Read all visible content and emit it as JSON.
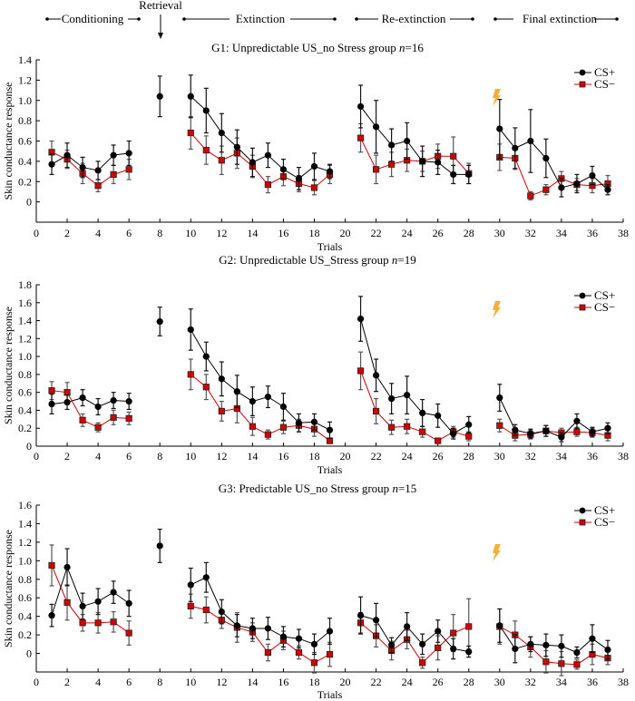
{
  "phases": [
    {
      "label": "Conditioning"
    },
    {
      "label": "Retrieval"
    },
    {
      "label": "Extinction"
    },
    {
      "label": "Re-extinction"
    },
    {
      "label": "Final extinction"
    }
  ],
  "legend": {
    "cs_plus": "CS+",
    "cs_minus": "CS−"
  },
  "colors": {
    "cs_plus": "#000000",
    "cs_minus": "#d40000",
    "error_bar": "#000000",
    "lightning": "#f5a623"
  },
  "icons": {
    "shock": "lightning-bolt-icon",
    "retrieval": "down-arrow-icon"
  },
  "chart_data": [
    {
      "type": "line",
      "title_prefix": "G1: Unpredictable US_no Stress group ",
      "title_n": "n",
      "title_suffix": "=16",
      "xlabel": "Trials",
      "ylabel": "Skin conductance response",
      "xlim": [
        0,
        38
      ],
      "ylim": [
        -0.2,
        1.4
      ],
      "xticks": [
        0,
        2,
        4,
        6,
        8,
        10,
        12,
        14,
        16,
        18,
        20,
        22,
        24,
        26,
        28,
        30,
        32,
        34,
        36,
        38
      ],
      "yticks": [
        0,
        0.2,
        0.4,
        0.6,
        0.8,
        1.0,
        1.2,
        1.4
      ],
      "ytick_labels": [
        "0",
        "0.2",
        "0.4",
        "0.6",
        "0.8",
        "1.0",
        "1.2",
        "1.4"
      ],
      "legend_position": "top-right",
      "segments": [
        [
          1,
          6
        ],
        [
          8,
          8
        ],
        [
          10,
          19
        ],
        [
          21,
          28
        ],
        [
          30,
          37
        ]
      ],
      "series": [
        {
          "name": "CS+",
          "x": [
            1,
            2,
            3,
            4,
            5,
            6,
            8,
            10,
            11,
            12,
            13,
            14,
            15,
            16,
            17,
            18,
            19,
            21,
            22,
            23,
            24,
            25,
            26,
            27,
            28,
            30,
            31,
            32,
            33,
            34,
            35,
            36,
            37
          ],
          "y": [
            0.37,
            0.46,
            0.34,
            0.31,
            0.46,
            0.48,
            1.04,
            1.04,
            0.9,
            0.68,
            0.54,
            0.39,
            0.46,
            0.32,
            0.23,
            0.35,
            0.3,
            0.94,
            0.74,
            0.56,
            0.6,
            0.4,
            0.39,
            0.27,
            0.27,
            0.72,
            0.53,
            0.6,
            0.43,
            0.14,
            0.18,
            0.26,
            0.12
          ],
          "err": [
            0.1,
            0.12,
            0.1,
            0.09,
            0.1,
            0.12,
            0.2,
            0.21,
            0.22,
            0.19,
            0.17,
            0.14,
            0.12,
            0.1,
            0.11,
            0.13,
            0.07,
            0.21,
            0.26,
            0.16,
            0.18,
            0.15,
            0.12,
            0.09,
            0.09,
            0.29,
            0.2,
            0.31,
            0.19,
            0.09,
            0.09,
            0.09,
            0.05
          ]
        },
        {
          "name": "CS−",
          "x": [
            1,
            2,
            3,
            4,
            5,
            6,
            10,
            11,
            12,
            13,
            14,
            15,
            16,
            17,
            18,
            19,
            21,
            22,
            23,
            24,
            25,
            26,
            27,
            28,
            30,
            31,
            32,
            33,
            34,
            35,
            36,
            37
          ],
          "y": [
            0.49,
            0.42,
            0.28,
            0.16,
            0.27,
            0.32,
            0.68,
            0.51,
            0.41,
            0.48,
            0.35,
            0.17,
            0.25,
            0.18,
            0.14,
            0.27,
            0.63,
            0.32,
            0.37,
            0.41,
            0.4,
            0.45,
            0.45,
            0.28,
            0.44,
            0.43,
            0.06,
            0.12,
            0.23,
            0.17,
            0.16,
            0.18
          ],
          "err": [
            0.11,
            0.09,
            0.1,
            0.06,
            0.09,
            0.1,
            0.16,
            0.14,
            0.14,
            0.15,
            0.11,
            0.08,
            0.09,
            0.08,
            0.07,
            0.09,
            0.14,
            0.14,
            0.12,
            0.11,
            0.1,
            0.12,
            0.19,
            0.1,
            0.13,
            0.11,
            0.04,
            0.05,
            0.07,
            0.06,
            0.07,
            0.08
          ]
        }
      ]
    },
    {
      "type": "line",
      "title_prefix": "G2: Unpredictable US_Stress group ",
      "title_n": "n",
      "title_suffix": "=19",
      "xlabel": "Trials",
      "ylabel": "Skin conductance response",
      "xlim": [
        0,
        38
      ],
      "ylim": [
        0,
        1.8
      ],
      "xticks": [
        0,
        2,
        4,
        6,
        8,
        10,
        12,
        14,
        16,
        18,
        20,
        22,
        24,
        26,
        28,
        30,
        32,
        34,
        36,
        38
      ],
      "yticks": [
        0,
        0.2,
        0.4,
        0.6,
        0.8,
        1.0,
        1.2,
        1.4,
        1.6,
        1.8
      ],
      "ytick_labels": [
        "0",
        "0.2",
        "0.4",
        "0.6",
        "0.8",
        "1.0",
        "1.2",
        "1.4",
        "1.6",
        "1.8"
      ],
      "legend_position": "top-right",
      "segments": [
        [
          1,
          6
        ],
        [
          8,
          8
        ],
        [
          10,
          19
        ],
        [
          21,
          28
        ],
        [
          30,
          37
        ]
      ],
      "series": [
        {
          "name": "CS+",
          "x": [
            1,
            2,
            3,
            4,
            5,
            6,
            8,
            10,
            11,
            12,
            13,
            14,
            15,
            16,
            17,
            18,
            19,
            21,
            22,
            23,
            24,
            25,
            26,
            27,
            28,
            30,
            31,
            32,
            33,
            34,
            35,
            36,
            37
          ],
          "y": [
            0.47,
            0.49,
            0.54,
            0.44,
            0.51,
            0.5,
            1.39,
            1.3,
            1.0,
            0.75,
            0.61,
            0.5,
            0.55,
            0.44,
            0.26,
            0.27,
            0.18,
            1.42,
            0.79,
            0.53,
            0.57,
            0.37,
            0.34,
            0.14,
            0.24,
            0.54,
            0.18,
            0.14,
            0.17,
            0.1,
            0.28,
            0.16,
            0.2
          ],
          "err": [
            0.11,
            0.08,
            0.09,
            0.09,
            0.09,
            0.09,
            0.16,
            0.23,
            0.16,
            0.19,
            0.18,
            0.16,
            0.12,
            0.15,
            0.1,
            0.09,
            0.09,
            0.25,
            0.18,
            0.17,
            0.21,
            0.15,
            0.13,
            0.06,
            0.09,
            0.15,
            0.06,
            0.05,
            0.06,
            0.05,
            0.08,
            0.05,
            0.06
          ]
        },
        {
          "name": "CS−",
          "x": [
            1,
            2,
            3,
            4,
            5,
            6,
            10,
            11,
            12,
            13,
            14,
            15,
            16,
            17,
            18,
            19,
            21,
            22,
            23,
            24,
            25,
            26,
            27,
            28,
            30,
            31,
            32,
            33,
            34,
            35,
            36,
            37
          ],
          "y": [
            0.62,
            0.6,
            0.29,
            0.21,
            0.32,
            0.31,
            0.8,
            0.66,
            0.39,
            0.42,
            0.22,
            0.13,
            0.21,
            0.23,
            0.19,
            0.06,
            0.84,
            0.39,
            0.21,
            0.22,
            0.16,
            0.06,
            0.16,
            0.11,
            0.23,
            0.12,
            0.13,
            0.17,
            0.15,
            0.16,
            0.15,
            0.12
          ],
          "err": [
            0.1,
            0.11,
            0.07,
            0.05,
            0.08,
            0.07,
            0.17,
            0.14,
            0.11,
            0.16,
            0.1,
            0.05,
            0.07,
            0.07,
            0.08,
            0.03,
            0.21,
            0.14,
            0.08,
            0.08,
            0.06,
            0.03,
            0.06,
            0.05,
            0.07,
            0.06,
            0.05,
            0.06,
            0.05,
            0.05,
            0.05,
            0.06
          ]
        }
      ]
    },
    {
      "type": "line",
      "title_prefix": "G3: Predictable US_no Stress group ",
      "title_n": "n",
      "title_suffix": "=15",
      "xlabel": "Trials",
      "ylabel": "Skin conductance response",
      "xlim": [
        0,
        38
      ],
      "ylim": [
        -0.2,
        1.6
      ],
      "xticks": [
        0,
        2,
        4,
        6,
        8,
        10,
        12,
        14,
        16,
        18,
        20,
        22,
        24,
        26,
        28,
        30,
        32,
        34,
        36,
        38
      ],
      "yticks": [
        0,
        0.2,
        0.4,
        0.6,
        0.8,
        1.0,
        1.2,
        1.4,
        1.6
      ],
      "ytick_labels": [
        "0",
        "0.2",
        "0.4",
        "0.6",
        "0.8",
        "1.0",
        "1.2",
        "1.4",
        "1.6"
      ],
      "legend_position": "top-right",
      "segments": [
        [
          1,
          6
        ],
        [
          8,
          8
        ],
        [
          10,
          19
        ],
        [
          21,
          28
        ],
        [
          30,
          37
        ]
      ],
      "series": [
        {
          "name": "CS+",
          "x": [
            1,
            2,
            3,
            4,
            5,
            6,
            8,
            10,
            11,
            12,
            13,
            14,
            15,
            16,
            17,
            18,
            19,
            21,
            22,
            23,
            24,
            25,
            26,
            27,
            28,
            30,
            31,
            32,
            33,
            34,
            35,
            36,
            37
          ],
          "y": [
            0.41,
            0.93,
            0.51,
            0.56,
            0.66,
            0.54,
            1.16,
            0.74,
            0.82,
            0.45,
            0.3,
            0.27,
            0.27,
            0.18,
            0.16,
            0.1,
            0.24,
            0.41,
            0.36,
            0.09,
            0.29,
            0.1,
            0.24,
            0.05,
            0.02,
            0.3,
            0.05,
            0.1,
            0.09,
            0.08,
            0.01,
            0.16,
            0.04
          ],
          "err": [
            0.12,
            0.2,
            0.14,
            0.14,
            0.12,
            0.14,
            0.18,
            0.18,
            0.16,
            0.13,
            0.12,
            0.11,
            0.12,
            0.11,
            0.1,
            0.11,
            0.14,
            0.2,
            0.18,
            0.08,
            0.15,
            0.11,
            0.12,
            0.11,
            0.06,
            0.18,
            0.15,
            0.08,
            0.12,
            0.12,
            0.06,
            0.15,
            0.1
          ]
        },
        {
          "name": "CS−",
          "x": [
            1,
            2,
            3,
            4,
            5,
            6,
            10,
            11,
            12,
            13,
            14,
            15,
            16,
            17,
            18,
            19,
            21,
            22,
            23,
            24,
            25,
            26,
            27,
            28,
            30,
            31,
            32,
            33,
            34,
            35,
            36,
            37
          ],
          "y": [
            0.95,
            0.55,
            0.33,
            0.33,
            0.34,
            0.22,
            0.51,
            0.47,
            0.36,
            0.28,
            0.23,
            0.01,
            0.14,
            0.01,
            -0.1,
            -0.01,
            0.33,
            0.19,
            0.03,
            0.15,
            -0.1,
            0.06,
            0.22,
            0.29,
            0.29,
            0.2,
            0.07,
            -0.09,
            -0.11,
            -0.12,
            -0.01,
            -0.05
          ],
          "err": [
            0.22,
            0.19,
            0.09,
            0.11,
            0.11,
            0.13,
            0.13,
            0.14,
            0.09,
            0.16,
            0.1,
            0.09,
            0.1,
            0.07,
            0.11,
            0.13,
            0.11,
            0.12,
            0.1,
            0.1,
            0.06,
            0.13,
            0.2,
            0.3,
            0.19,
            0.15,
            0.11,
            0.12,
            0.13,
            0.05,
            0.11,
            0.07
          ]
        }
      ]
    }
  ]
}
